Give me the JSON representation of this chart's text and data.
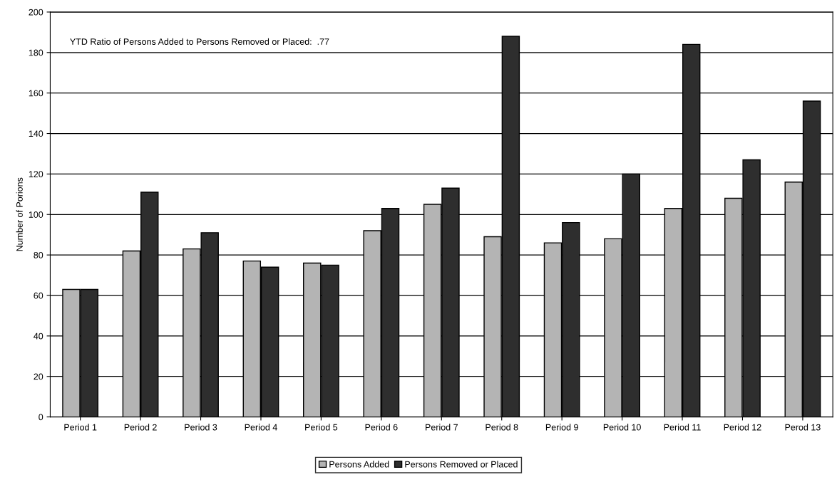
{
  "chart_data": {
    "type": "bar",
    "ylabel": "Number of Porions",
    "categories": [
      "Period 1",
      "Period 2",
      "Period 3",
      "Period 4",
      "Period 5",
      "Period 6",
      "Period 7",
      "Period 8",
      "Period 9",
      "Period 10",
      "Period 11",
      "Period 12",
      "Perod 13"
    ],
    "series": [
      {
        "name": "Persons Added",
        "color": "#b4b4b4",
        "values": [
          63,
          82,
          83,
          77,
          76,
          92,
          105,
          89,
          86,
          88,
          103,
          108,
          116
        ]
      },
      {
        "name": "Persons Removed or Placed",
        "color": "#2e2e2e",
        "values": [
          63,
          111,
          91,
          74,
          75,
          103,
          113,
          188,
          96,
          120,
          184,
          127,
          156
        ]
      }
    ],
    "annotations": [
      "YTD Ratio of Persons Added to Persons Removed or Placed:  .77"
    ],
    "ylim": [
      0,
      200
    ],
    "yticks": [
      0,
      20,
      40,
      60,
      80,
      100,
      120,
      140,
      160,
      180,
      200
    ],
    "grid": "y",
    "legend": "bottom"
  }
}
